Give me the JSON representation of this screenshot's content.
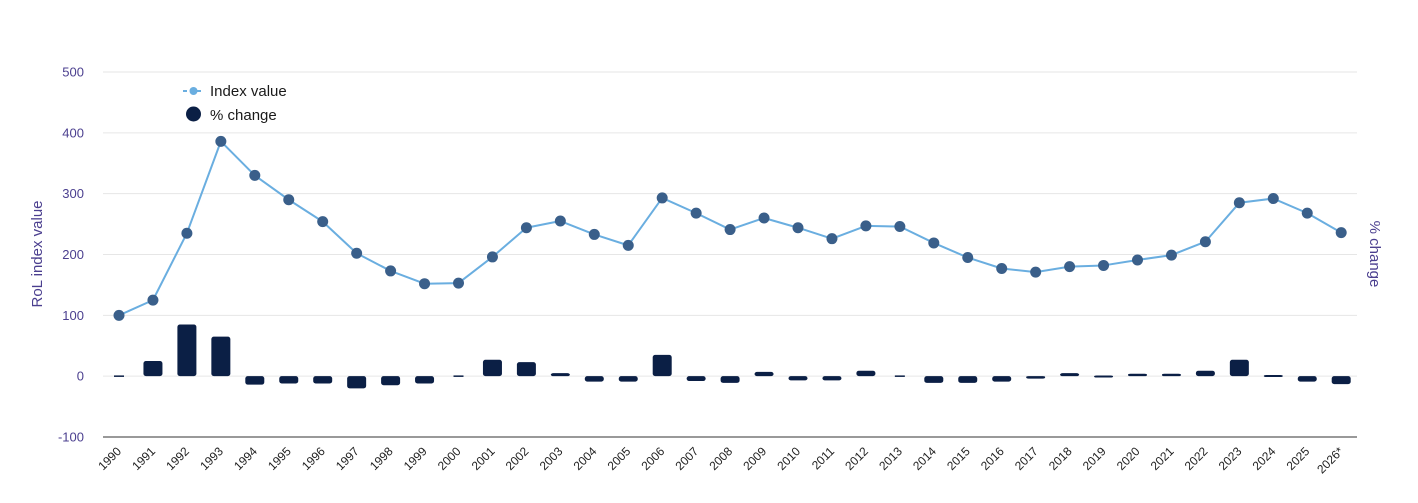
{
  "chart_data": {
    "type": "bar+line",
    "title": "",
    "ylabel_left": "RoL index value",
    "ylabel_right": "% change",
    "ylim": [
      -100,
      500
    ],
    "yticks": [
      -100,
      0,
      100,
      200,
      300,
      400,
      500
    ],
    "grid": true,
    "legend_position": "top-left",
    "categories": [
      "1990",
      "1991",
      "1992",
      "1993",
      "1994",
      "1995",
      "1996",
      "1997",
      "1998",
      "1999",
      "2000",
      "2001",
      "2002",
      "2003",
      "2004",
      "2005",
      "2006",
      "2007",
      "2008",
      "2009",
      "2010",
      "2011",
      "2012",
      "2013",
      "2014",
      "2015",
      "2016",
      "2017",
      "2018",
      "2019",
      "2020",
      "2021",
      "2022",
      "2023",
      "2024",
      "2025",
      "2026*"
    ],
    "series": [
      {
        "name": "Index value",
        "type": "line",
        "color": "#6aaee0",
        "marker_color": "#3a5f8a",
        "values": [
          100,
          125,
          235,
          386,
          330,
          290,
          254,
          202,
          173,
          152,
          153,
          196,
          244,
          255,
          233,
          215,
          293,
          268,
          241,
          260,
          244,
          226,
          247,
          246,
          219,
          195,
          177,
          171,
          180,
          182,
          191,
          199,
          221,
          285,
          292,
          268,
          236
        ]
      },
      {
        "name": "% change",
        "type": "bar",
        "color": "#0b1f45",
        "values": [
          0,
          25,
          85,
          65,
          -14,
          -12,
          -12,
          -20,
          -15,
          -12,
          0,
          27,
          23,
          5,
          -9,
          -9,
          35,
          -8,
          -11,
          7,
          -7,
          -7,
          9,
          0,
          -11,
          -11,
          -9,
          -4,
          5,
          1,
          4,
          4,
          9,
          27,
          2,
          -9,
          -13
        ]
      }
    ]
  }
}
